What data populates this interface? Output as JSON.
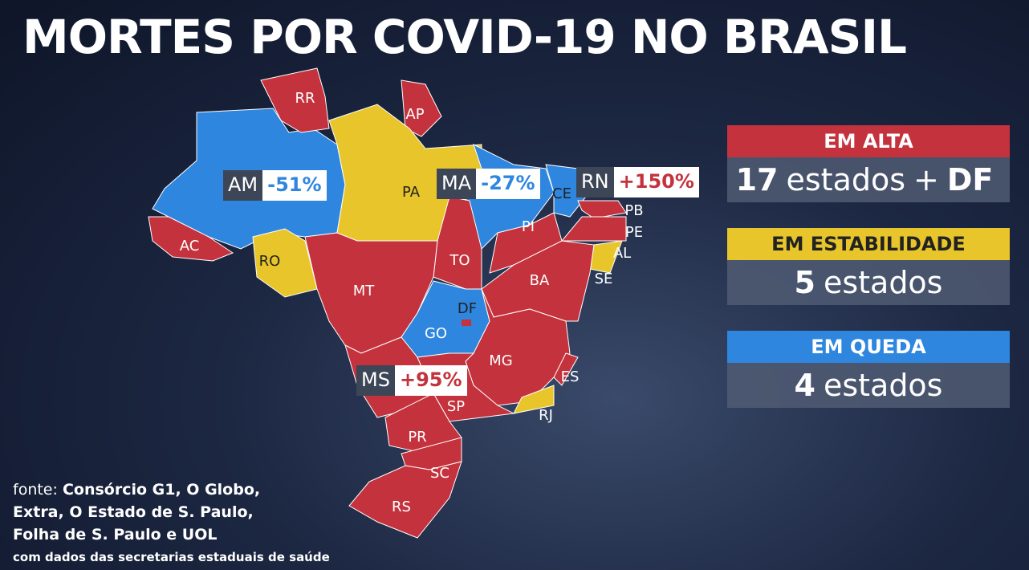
{
  "title": "MORTES POR COVID-19 NO BRASIL",
  "state_labels": [
    "RR",
    "AP",
    "PA",
    "CE",
    "PB",
    "PE",
    "AL",
    "SE",
    "PI",
    "AC",
    "RO",
    "TO",
    "MT",
    "BA",
    "DF",
    "GO",
    "MG",
    "ES",
    "SP",
    "RJ",
    "PR",
    "SC",
    "RS"
  ],
  "callouts": [
    {
      "state": "AM",
      "change": "-51%"
    },
    {
      "state": "MA",
      "change": "-27%"
    },
    {
      "state": "RN",
      "change": "+150%"
    },
    {
      "state": "MS",
      "change": "+95%"
    }
  ],
  "legend": [
    {
      "label": "EM ALTA",
      "count": "17",
      "unit": "estados",
      "plus": "+",
      "extra": "DF"
    },
    {
      "label": "EM ESTABILIDADE",
      "count": "5",
      "unit": "estados"
    },
    {
      "label": "EM QUEDA",
      "count": "4",
      "unit": "estados"
    }
  ],
  "source": {
    "prefix": "fonte:",
    "lines": [
      "Consórcio G1, O Globo,",
      "Extra, O Estado de S. Paulo,",
      "Folha de S. Paulo e UOL"
    ],
    "note": "com dados das secretarias estaduais de saúde"
  }
}
